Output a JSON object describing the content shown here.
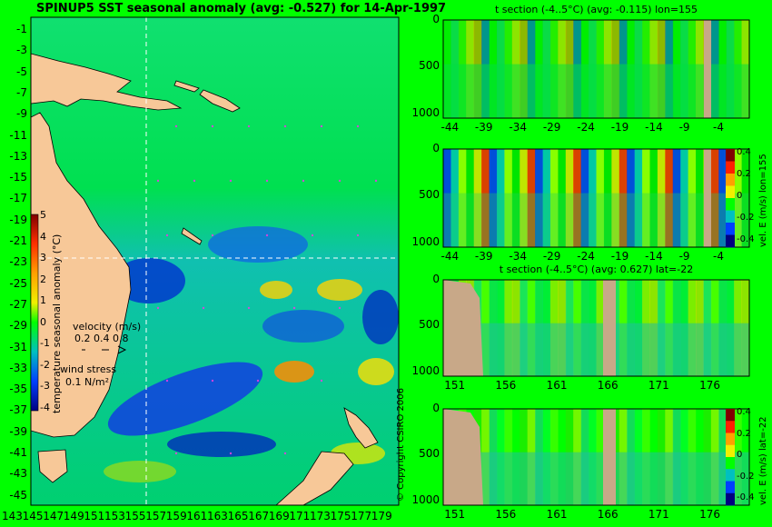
{
  "header": {
    "main_title": "SPINUP5 SST seasonal anomaly (avg: -0.527) for 14-Apr-1997"
  },
  "map": {
    "lat_ticks": [
      "-1",
      "-3",
      "-5",
      "-7",
      "-9",
      "-11",
      "-13",
      "-15",
      "-17",
      "-19",
      "-21",
      "-23",
      "-25",
      "-27",
      "-29",
      "-31",
      "-33",
      "-35",
      "-37",
      "-39",
      "-41",
      "-43",
      "-45"
    ],
    "lon_ticks": [
      "143",
      "145",
      "147",
      "149",
      "151",
      "153",
      "155",
      "157",
      "159",
      "161",
      "163",
      "165",
      "167",
      "169",
      "171",
      "173",
      "175",
      "177",
      "179"
    ],
    "colorbar": {
      "ticks": [
        "5",
        "4",
        "3",
        "2",
        "1",
        "0",
        "-1",
        "-2",
        "-3",
        "-4"
      ],
      "label": "temperature seasonal anomaly (°C)"
    },
    "velocity_legend": {
      "title": "velocity (m/s)",
      "scale": "0.2 0.4 0.8"
    },
    "wind_legend": {
      "title": "wind stress",
      "value": "0.1 N/m²"
    },
    "copyright": "© Copyright CSIRO 2006",
    "colors": {
      "land": "#f7c898",
      "warm": "#ffd200",
      "cold": "#0030d0",
      "background": "#00ff00"
    }
  },
  "chart_data": [
    {
      "type": "heatmap",
      "title": "t section (-4..5°C) (avg: -0.115) lon=155",
      "x_ticks": [
        "-44",
        "-39",
        "-34",
        "-29",
        "-24",
        "-19",
        "-14",
        "-9",
        "-4"
      ],
      "y_ticks": [
        "0",
        "500",
        "1000"
      ],
      "xlim": [
        -45,
        0
      ],
      "ylim": [
        0,
        1050
      ]
    },
    {
      "type": "heatmap",
      "title": "",
      "side_label": "vel. E (m/s) lon=155",
      "x_ticks": [
        "-44",
        "-39",
        "-34",
        "-29",
        "-24",
        "-19",
        "-14",
        "-9",
        "-4"
      ],
      "y_ticks": [
        "0",
        "500",
        "1000"
      ],
      "colorbar_ticks": [
        "0.4",
        "0.2",
        "0",
        "-0.2",
        "-0.4"
      ],
      "xlim": [
        -45,
        0
      ],
      "ylim": [
        0,
        1050
      ]
    },
    {
      "type": "heatmap",
      "title": "t section (-4..5°C) (avg: 0.627) lat=-22",
      "x_ticks": [
        "151",
        "156",
        "161",
        "166",
        "171",
        "176"
      ],
      "y_ticks": [
        "0",
        "500",
        "1000"
      ],
      "xlim": [
        150,
        180
      ],
      "ylim": [
        0,
        1050
      ]
    },
    {
      "type": "heatmap",
      "title": "",
      "side_label": "vel. E (m/s) lat=-22",
      "x_ticks": [
        "151",
        "156",
        "161",
        "166",
        "171",
        "176"
      ],
      "y_ticks": [
        "0",
        "500",
        "1000"
      ],
      "colorbar_ticks": [
        "0.4",
        "0.2",
        "0",
        "-0.2",
        "-0.4"
      ],
      "xlim": [
        150,
        180
      ],
      "ylim": [
        0,
        1050
      ]
    }
  ]
}
